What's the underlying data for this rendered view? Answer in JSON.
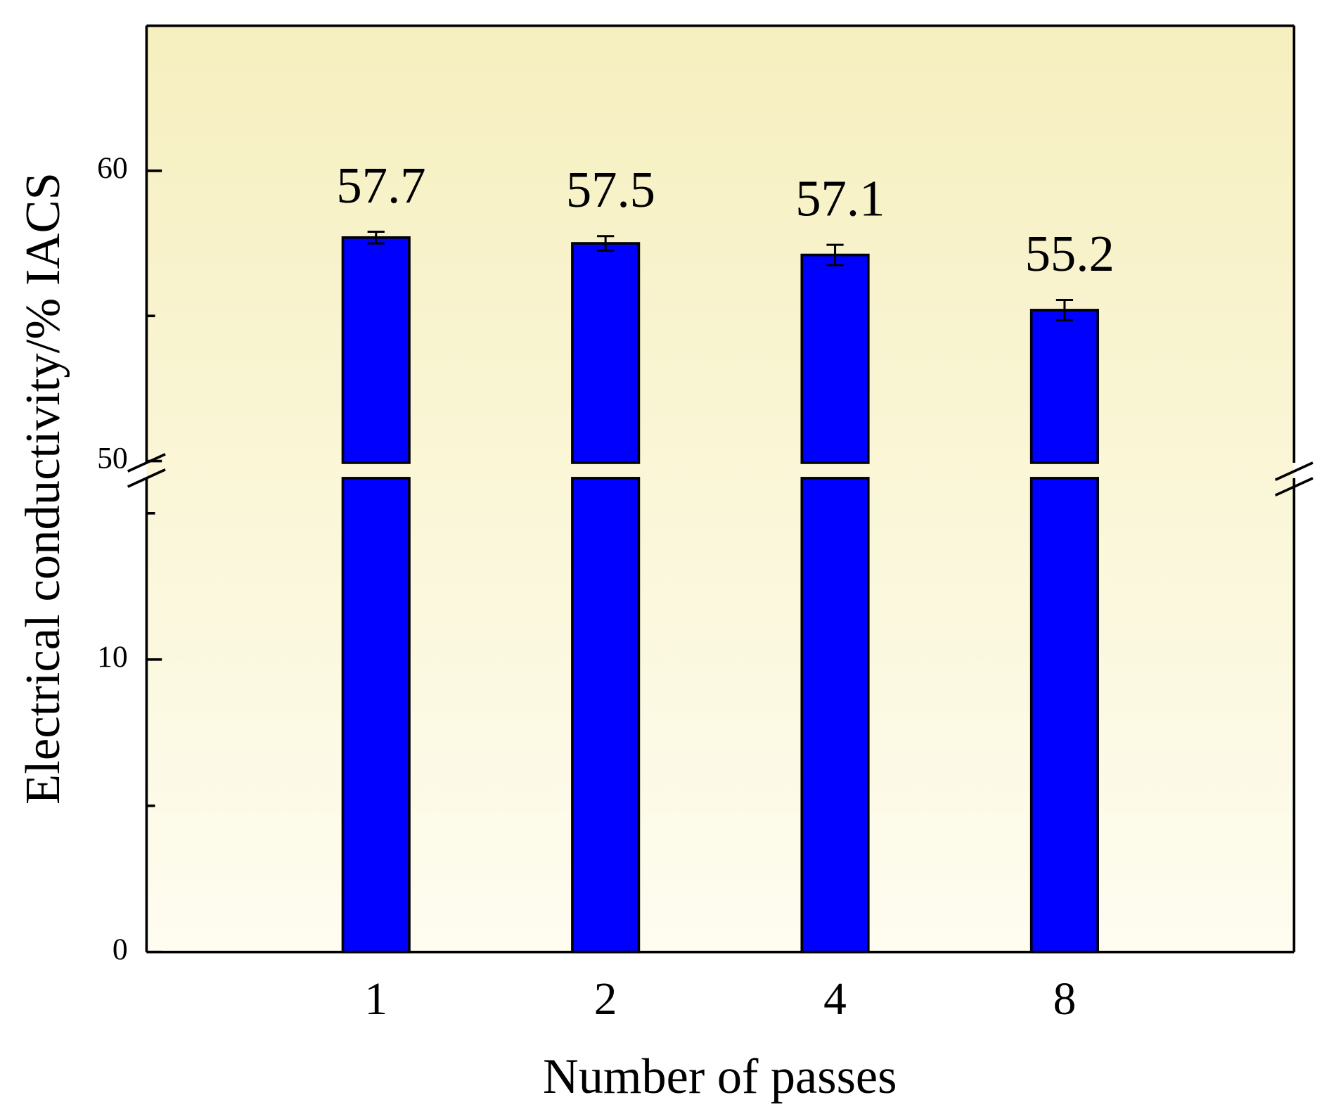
{
  "chart_data": {
    "type": "bar",
    "x_label": "Number of passes",
    "y_label": "Electrical conductivity/% IACS",
    "categories": [
      "1",
      "2",
      "4",
      "8"
    ],
    "values": [
      57.7,
      57.5,
      57.1,
      55.2
    ],
    "errors": [
      0.2,
      0.25,
      0.35,
      0.35
    ],
    "color": "#0000ff",
    "ylim": [
      0,
      65
    ],
    "y_break": [
      16.2,
      50
    ],
    "yticks": [
      0,
      10,
      50,
      60
    ],
    "yminorticks": [
      5,
      15,
      55
    ]
  }
}
